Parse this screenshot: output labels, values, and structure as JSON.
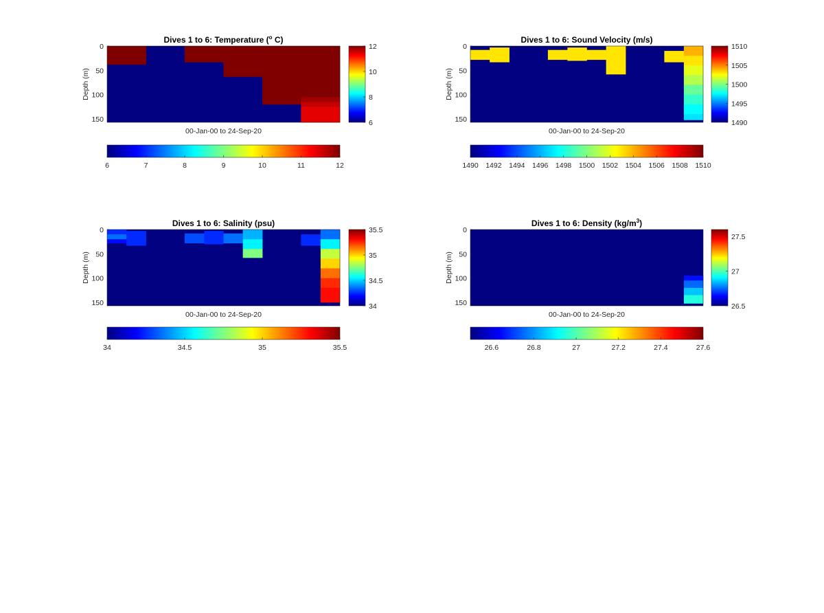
{
  "figure": {
    "x_caption": "00-Jan-00 to 24-Sep-20",
    "ylabel": "Depth (m)"
  },
  "chart_data": [
    {
      "type": "heatmap",
      "id": "temperature",
      "title": {
        "pre": "Dives 1 to 6: Temperature (",
        "sup": "o",
        "post": " C)"
      },
      "ylabel": "Depth (m)",
      "xlabel": "00-Jan-00 to 24-Sep-20",
      "ylim": [
        0,
        157
      ],
      "yticks": [
        0,
        50,
        100,
        150
      ],
      "clim": [
        6,
        12
      ],
      "colorbar_right_ticks": [
        "12",
        "10",
        "8",
        "6"
      ],
      "colorbar_right_values": [
        12,
        10,
        8,
        6
      ],
      "colorbar_bottom_ticks": [
        "6",
        "7",
        "8",
        "9",
        "10",
        "11",
        "12"
      ],
      "colorbar_bottom_values": [
        6,
        7,
        8,
        9,
        10,
        11,
        12
      ],
      "background": 6,
      "cells": [
        {
          "x": [
            0,
            0.167
          ],
          "y": [
            0,
            38
          ],
          "v": 12
        },
        {
          "x": [
            0.333,
            0.5
          ],
          "y": [
            0,
            33
          ],
          "v": 12
        },
        {
          "x": [
            0.5,
            0.667
          ],
          "y": [
            0,
            63
          ],
          "v": 12
        },
        {
          "x": [
            0.667,
            0.833
          ],
          "y": [
            0,
            120
          ],
          "v": 12
        },
        {
          "x": [
            0.833,
            1.0
          ],
          "y": [
            0,
            105
          ],
          "v": 12
        },
        {
          "x": [
            0.833,
            1.0
          ],
          "y": [
            105,
            115
          ],
          "v": 11.8
        },
        {
          "x": [
            0.833,
            1.0
          ],
          "y": [
            115,
            125
          ],
          "v": 11.6
        },
        {
          "x": [
            0.833,
            1.0
          ],
          "y": [
            125,
            157
          ],
          "v": 11.4
        }
      ]
    },
    {
      "type": "heatmap",
      "id": "sound_velocity",
      "title": {
        "pre": "Dives 1 to 6: Sound Velocity (m/s)",
        "sup": "",
        "post": ""
      },
      "ylabel": "Depth (m)",
      "xlabel": "00-Jan-00 to 24-Sep-20",
      "ylim": [
        0,
        157
      ],
      "yticks": [
        0,
        50,
        100,
        150
      ],
      "clim": [
        1490,
        1510
      ],
      "colorbar_right_ticks": [
        "1510",
        "1505",
        "1500",
        "1495",
        "1490"
      ],
      "colorbar_right_values": [
        1510,
        1505,
        1500,
        1495,
        1490
      ],
      "colorbar_bottom_ticks": [
        "1490",
        "1492",
        "1494",
        "1496",
        "1498",
        "1500",
        "1502",
        "1504",
        "1506",
        "1508",
        "1510"
      ],
      "colorbar_bottom_values": [
        1490,
        1492,
        1494,
        1496,
        1498,
        1500,
        1502,
        1504,
        1506,
        1508,
        1510
      ],
      "background": 1490,
      "cells": [
        {
          "x": [
            0,
            0.083
          ],
          "y": [
            8,
            28
          ],
          "v": 1503
        },
        {
          "x": [
            0.083,
            0.167
          ],
          "y": [
            3,
            33
          ],
          "v": 1503
        },
        {
          "x": [
            0.333,
            0.417
          ],
          "y": [
            8,
            28
          ],
          "v": 1503
        },
        {
          "x": [
            0.417,
            0.5
          ],
          "y": [
            3,
            30
          ],
          "v": 1503
        },
        {
          "x": [
            0.5,
            0.583
          ],
          "y": [
            8,
            28
          ],
          "v": 1503
        },
        {
          "x": [
            0.583,
            0.667
          ],
          "y": [
            0,
            58
          ],
          "v": 1503
        },
        {
          "x": [
            0.833,
            0.917
          ],
          "y": [
            10,
            33
          ],
          "v": 1503
        },
        {
          "x": [
            0.917,
            1.0
          ],
          "y": [
            0,
            20
          ],
          "v": 1504
        },
        {
          "x": [
            0.917,
            1.0
          ],
          "y": [
            20,
            40
          ],
          "v": 1503
        },
        {
          "x": [
            0.917,
            1.0
          ],
          "y": [
            40,
            60
          ],
          "v": 1502
        },
        {
          "x": [
            0.917,
            1.0
          ],
          "y": [
            60,
            80
          ],
          "v": 1501
        },
        {
          "x": [
            0.917,
            1.0
          ],
          "y": [
            80,
            100
          ],
          "v": 1499.5
        },
        {
          "x": [
            0.917,
            1.0
          ],
          "y": [
            100,
            120
          ],
          "v": 1498.5
        },
        {
          "x": [
            0.917,
            1.0
          ],
          "y": [
            120,
            140
          ],
          "v": 1497.5
        },
        {
          "x": [
            0.917,
            1.0
          ],
          "y": [
            140,
            152
          ],
          "v": 1497
        }
      ]
    },
    {
      "type": "heatmap",
      "id": "salinity",
      "title": {
        "pre": "Dives 1 to 6: Salinity (psu)",
        "sup": "",
        "post": ""
      },
      "ylabel": "Depth (m)",
      "xlabel": "00-Jan-00 to 24-Sep-20",
      "ylim": [
        0,
        157
      ],
      "yticks": [
        0,
        50,
        100,
        150
      ],
      "clim": [
        34,
        35.5
      ],
      "colorbar_right_ticks": [
        "35.5",
        "35",
        "34.5",
        "34"
      ],
      "colorbar_right_values": [
        35.5,
        35,
        34.5,
        34
      ],
      "colorbar_bottom_ticks": [
        "34",
        "34.5",
        "35",
        "35.5"
      ],
      "colorbar_bottom_values": [
        34,
        34.5,
        35,
        35.5
      ],
      "background": 34,
      "cells": [
        {
          "x": [
            0,
            0.083
          ],
          "y": [
            0,
            10
          ],
          "v": 34.25
        },
        {
          "x": [
            0,
            0.083
          ],
          "y": [
            10,
            20
          ],
          "v": 34.35
        },
        {
          "x": [
            0,
            0.083
          ],
          "y": [
            20,
            28
          ],
          "v": 34.2
        },
        {
          "x": [
            0.083,
            0.167
          ],
          "y": [
            3,
            33
          ],
          "v": 34.25
        },
        {
          "x": [
            0.333,
            0.417
          ],
          "y": [
            8,
            28
          ],
          "v": 34.3
        },
        {
          "x": [
            0.417,
            0.5
          ],
          "y": [
            3,
            30
          ],
          "v": 34.25
        },
        {
          "x": [
            0.5,
            0.583
          ],
          "y": [
            8,
            28
          ],
          "v": 34.35
        },
        {
          "x": [
            0.583,
            0.667
          ],
          "y": [
            0,
            20
          ],
          "v": 34.45
        },
        {
          "x": [
            0.583,
            0.667
          ],
          "y": [
            20,
            40
          ],
          "v": 34.55
        },
        {
          "x": [
            0.583,
            0.667
          ],
          "y": [
            40,
            58
          ],
          "v": 34.75
        },
        {
          "x": [
            0.833,
            0.917
          ],
          "y": [
            10,
            33
          ],
          "v": 34.25
        },
        {
          "x": [
            0.917,
            1.0
          ],
          "y": [
            0,
            20
          ],
          "v": 34.35
        },
        {
          "x": [
            0.917,
            1.0
          ],
          "y": [
            20,
            40
          ],
          "v": 34.55
        },
        {
          "x": [
            0.917,
            1.0
          ],
          "y": [
            40,
            60
          ],
          "v": 34.85
        },
        {
          "x": [
            0.917,
            1.0
          ],
          "y": [
            60,
            80
          ],
          "v": 35.0
        },
        {
          "x": [
            0.917,
            1.0
          ],
          "y": [
            80,
            100
          ],
          "v": 35.15
        },
        {
          "x": [
            0.917,
            1.0
          ],
          "y": [
            100,
            120
          ],
          "v": 35.25
        },
        {
          "x": [
            0.917,
            1.0
          ],
          "y": [
            120,
            150
          ],
          "v": 35.3
        }
      ]
    },
    {
      "type": "heatmap",
      "id": "density",
      "title": {
        "pre": "Dives 1 to 6: Density (kg/m",
        "sup": "3",
        "post": ")"
      },
      "ylabel": "Depth (m)",
      "xlabel": "00-Jan-00 to 24-Sep-20",
      "ylim": [
        0,
        157
      ],
      "yticks": [
        0,
        50,
        100,
        150
      ],
      "clim": [
        26.5,
        27.6
      ],
      "colorbar_right_ticks": [
        "27.5",
        "27",
        "26.5"
      ],
      "colorbar_right_values": [
        27.5,
        27,
        26.5
      ],
      "colorbar_bottom_ticks": [
        "26.6",
        "26.8",
        "27",
        "27.2",
        "27.4",
        "27.6"
      ],
      "colorbar_bottom_values": [
        26.6,
        26.8,
        27,
        27.2,
        27.4,
        27.6
      ],
      "background": 26.5,
      "cells": [
        {
          "x": [
            0.917,
            1.0
          ],
          "y": [
            95,
            105
          ],
          "v": 26.65
        },
        {
          "x": [
            0.917,
            1.0
          ],
          "y": [
            105,
            120
          ],
          "v": 26.75
        },
        {
          "x": [
            0.917,
            1.0
          ],
          "y": [
            120,
            135
          ],
          "v": 26.85
        },
        {
          "x": [
            0.917,
            1.0
          ],
          "y": [
            135,
            152
          ],
          "v": 26.95
        }
      ]
    }
  ]
}
